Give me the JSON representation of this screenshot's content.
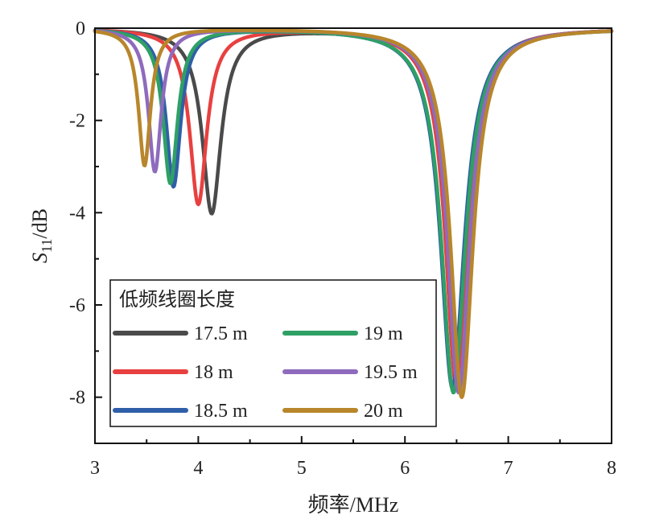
{
  "chart_data": {
    "type": "line",
    "xlabel_text": "频率/MHz",
    "ylabel_main": "S",
    "ylabel_sub": "11",
    "ylabel_rest": "/dB",
    "xlim": [
      3,
      8
    ],
    "ylim": [
      -9,
      0
    ],
    "x_ticks": [
      3,
      4,
      5,
      6,
      7,
      8
    ],
    "y_ticks": [
      0,
      -2,
      -4,
      -6,
      -8
    ],
    "grid": false,
    "legend_title": "低频线圈长度",
    "legend_placement": "bottom-left",
    "series": [
      {
        "name": "17.5 m",
        "color": "#4a4a4a",
        "dip1": {
          "x": 4.13,
          "y": -4.0,
          "w": 0.11
        },
        "dip2": {
          "x": 6.5,
          "y": -7.7,
          "w": 0.13
        }
      },
      {
        "name": "18 m",
        "color": "#e84040",
        "dip1": {
          "x": 4.0,
          "y": -3.8,
          "w": 0.1
        },
        "dip2": {
          "x": 6.5,
          "y": -7.8,
          "w": 0.13
        }
      },
      {
        "name": "18.5 m",
        "color": "#2f5fa8",
        "dip1": {
          "x": 3.76,
          "y": -3.42,
          "w": 0.085
        },
        "dip2": {
          "x": 6.46,
          "y": -7.8,
          "w": 0.14
        }
      },
      {
        "name": "19 m",
        "color": "#2fa065",
        "dip1": {
          "x": 3.73,
          "y": -3.35,
          "w": 0.085
        },
        "dip2": {
          "x": 6.47,
          "y": -7.9,
          "w": 0.14
        }
      },
      {
        "name": "19.5 m",
        "color": "#8e6bbd",
        "dip1": {
          "x": 3.58,
          "y": -3.1,
          "w": 0.075
        },
        "dip2": {
          "x": 6.52,
          "y": -7.9,
          "w": 0.13
        }
      },
      {
        "name": "20 m",
        "color": "#b8862b",
        "dip1": {
          "x": 3.48,
          "y": -2.97,
          "w": 0.07
        },
        "dip2": {
          "x": 6.55,
          "y": -8.0,
          "w": 0.13
        }
      }
    ]
  }
}
